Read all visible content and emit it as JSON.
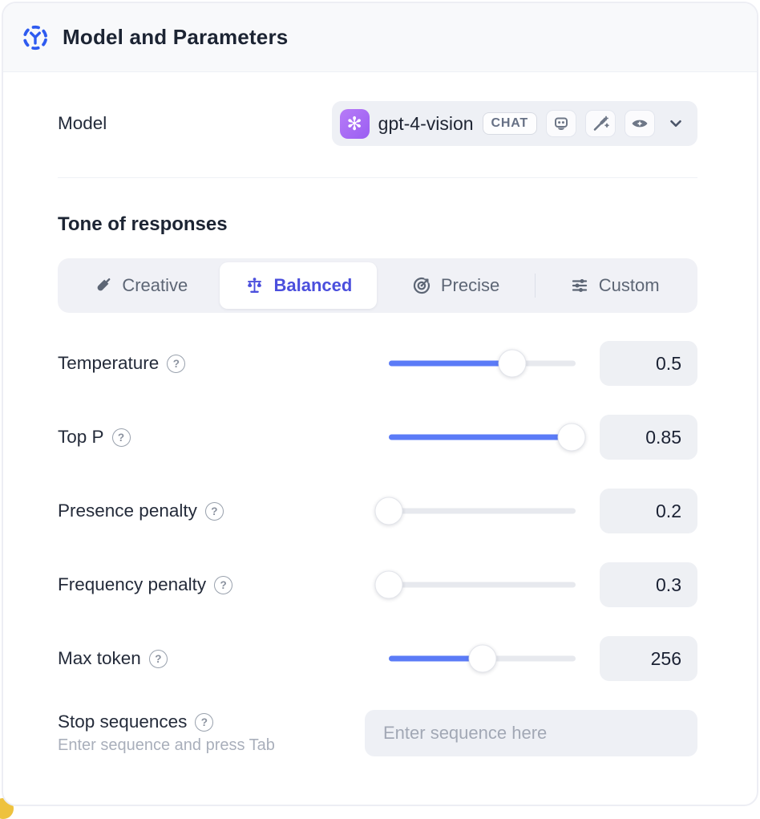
{
  "header": {
    "title": "Model and Parameters"
  },
  "model": {
    "label": "Model",
    "name": "gpt-4-vision",
    "type_badge": "CHAT",
    "capability_icons": [
      "robot-icon",
      "magic-wand-icon",
      "vision-eye-icon"
    ],
    "avatar_icon": "openai-logo-icon"
  },
  "tone": {
    "heading": "Tone of responses",
    "selected": "Balanced",
    "options": [
      {
        "label": "Creative",
        "icon": "paintbrush-icon"
      },
      {
        "label": "Balanced",
        "icon": "balance-scale-icon"
      },
      {
        "label": "Precise",
        "icon": "target-icon"
      },
      {
        "label": "Custom",
        "icon": "sliders-icon"
      }
    ]
  },
  "parameters": [
    {
      "label": "Temperature",
      "value": "0.5",
      "fill_pct": 66
    },
    {
      "label": "Top P",
      "value": "0.85",
      "fill_pct": 98
    },
    {
      "label": "Presence penalty",
      "value": "0.2",
      "fill_pct": 0
    },
    {
      "label": "Frequency penalty",
      "value": "0.3",
      "fill_pct": 0
    },
    {
      "label": "Max token",
      "value": "256",
      "fill_pct": 50
    }
  ],
  "stop_sequences": {
    "label": "Stop sequences",
    "hint": "Enter sequence and press Tab",
    "placeholder": "Enter sequence here",
    "value": ""
  },
  "colors": {
    "accent_blue": "#5b7bf7",
    "selected_indigo": "#4b4fdd",
    "header_icon_blue": "#2e5bf0",
    "avatar_purple": "#a76bf5",
    "surface_gray": "#eef0f5",
    "corner_yellow": "#eec23e"
  }
}
